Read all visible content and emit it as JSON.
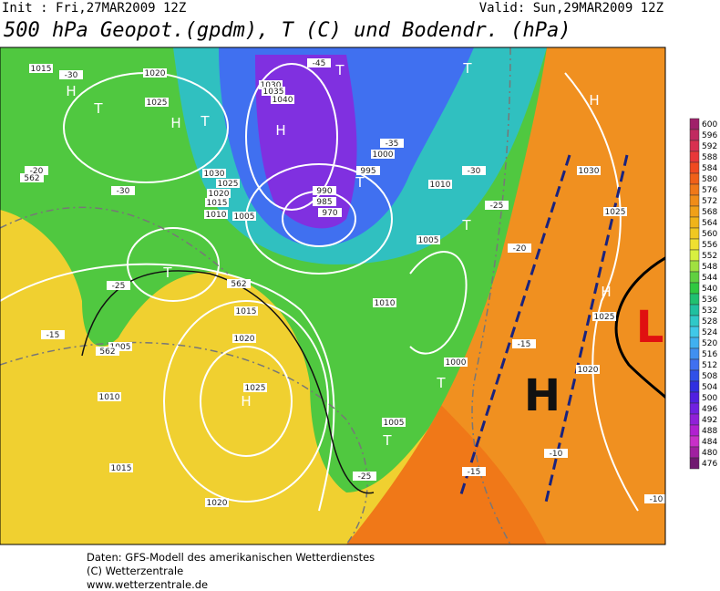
{
  "header": {
    "init": "Init : Fri,27MAR2009 12Z",
    "valid": "Valid: Sun,29MAR2009 12Z",
    "title": "500 hPa Geopot.(gpdm), T (C) und Bodendr. (hPa)"
  },
  "legend": {
    "levels": [
      600,
      596,
      592,
      588,
      584,
      580,
      576,
      572,
      568,
      564,
      560,
      556,
      552,
      548,
      544,
      540,
      536,
      532,
      528,
      524,
      520,
      516,
      512,
      508,
      504,
      500,
      496,
      492,
      488,
      484,
      480,
      476
    ],
    "colors": [
      "#a0206a",
      "#c02a60",
      "#d83050",
      "#e83838",
      "#f04a20",
      "#f06018",
      "#f07818",
      "#f08c18",
      "#f0a018",
      "#f0b418",
      "#f0c820",
      "#f0e030",
      "#d8f040",
      "#a0e040",
      "#60d040",
      "#30c840",
      "#20c070",
      "#20c0a0",
      "#30c8c8",
      "#40c8e8",
      "#40b0f0",
      "#4090f0",
      "#4070f0",
      "#3050e8",
      "#3030e0",
      "#5020e0",
      "#7020e0",
      "#9020d8",
      "#b020d0",
      "#c830c8",
      "#a020a0",
      "#701870"
    ]
  },
  "map": {
    "labels": [
      "H",
      "T",
      "H",
      "T",
      "T",
      "H",
      "T",
      "T",
      "H",
      "T",
      "T",
      "H",
      "T",
      "H",
      "T",
      "1015",
      "1020",
      "1025",
      "1030",
      "1040",
      "1035",
      "1030",
      "1025",
      "1020",
      "1015",
      "1010",
      "1005",
      "995",
      "990",
      "985",
      "970",
      "1000",
      "1010",
      "1005",
      "1010",
      "1015",
      "1020",
      "1025",
      "1010",
      "1015",
      "1020",
      "1005",
      "1000",
      "1005",
      "1030",
      "1025",
      "1025",
      "1020",
      "-30",
      "-30",
      "-25",
      "-20",
      "-15",
      "-45",
      "-35",
      "-30",
      "-25",
      "-20",
      "-15",
      "-10",
      "-25",
      "-15",
      "-10",
      "562",
      "562",
      "562"
    ],
    "big_h": "H",
    "big_l": "L"
  },
  "footer": [
    "Daten: GFS-Modell des amerikanischen Wetterdienstes",
    "(C) Wetterzentrale",
    "www.wetterzentrale.de"
  ]
}
